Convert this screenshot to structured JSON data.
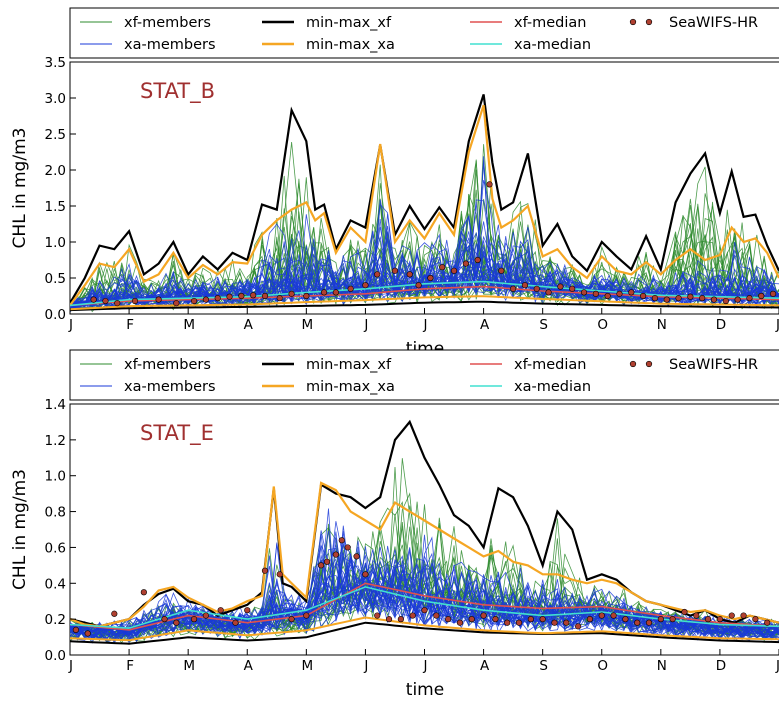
{
  "chart_data": [
    {
      "type": "line",
      "title": "STAT_B",
      "title_color": "#a03030",
      "xlabel": "time",
      "ylabel": "CHL in mg/m3",
      "ylim": [
        0,
        3.5
      ],
      "yticks": [
        "0.0",
        "0.5",
        "1.0",
        "1.5",
        "2.0",
        "2.5",
        "3.0",
        "3.5"
      ],
      "x_tick_labels": [
        "J",
        "F",
        "M",
        "A",
        "M",
        "J",
        "J",
        "A",
        "S",
        "O",
        "N",
        "D",
        "J"
      ],
      "xlim": [
        0,
        12
      ],
      "legend": {
        "placement": "top",
        "entries": [
          {
            "label": "xf-members",
            "color": "#2e8b2e",
            "style": "thin-line"
          },
          {
            "label": "min-max_xf",
            "color": "#000000",
            "style": "thick-line"
          },
          {
            "label": "xf-median",
            "color": "#e05050",
            "style": "line"
          },
          {
            "label": "SeaWIFS-HR",
            "color": "#b04030",
            "style": "dots"
          },
          {
            "label": "xa-members",
            "color": "#1a3ad8",
            "style": "thin-line"
          },
          {
            "label": "min-max_xa",
            "color": "#f5a623",
            "style": "thick-line"
          },
          {
            "label": "xa-median",
            "color": "#40e0d0",
            "style": "line"
          }
        ]
      },
      "series": [
        {
          "name": "min-max_xf",
          "role": "max",
          "x": [
            0,
            0.25,
            0.5,
            0.75,
            1.0,
            1.25,
            1.5,
            1.75,
            2.0,
            2.25,
            2.5,
            2.75,
            3.0,
            3.25,
            3.5,
            3.75,
            4.0,
            4.15,
            4.3,
            4.5,
            4.75,
            5.0,
            5.25,
            5.5,
            5.75,
            6.0,
            6.25,
            6.5,
            6.75,
            7.0,
            7.15,
            7.3,
            7.5,
            7.75,
            8.0,
            8.25,
            8.5,
            8.75,
            9.0,
            9.25,
            9.5,
            9.75,
            10.0,
            10.25,
            10.5,
            10.75,
            11.0,
            11.2,
            11.4,
            11.6,
            11.8,
            12.0
          ],
          "y": [
            0.15,
            0.5,
            0.95,
            0.9,
            1.15,
            0.55,
            0.7,
            1.0,
            0.55,
            0.8,
            0.62,
            0.85,
            0.75,
            1.52,
            1.45,
            2.83,
            2.4,
            1.45,
            1.52,
            0.9,
            1.3,
            1.2,
            2.35,
            1.1,
            1.5,
            1.18,
            1.48,
            1.2,
            2.4,
            3.05,
            2.1,
            1.45,
            1.55,
            2.23,
            0.95,
            1.25,
            0.8,
            0.6,
            1.0,
            0.8,
            0.62,
            1.08,
            0.62,
            1.55,
            1.95,
            2.23,
            1.4,
            1.98,
            1.35,
            1.38,
            0.95,
            0.6
          ]
        },
        {
          "name": "min-max_xa",
          "role": "max",
          "x": [
            0,
            0.25,
            0.5,
            0.75,
            1.0,
            1.25,
            1.5,
            1.75,
            2.0,
            2.25,
            2.5,
            2.75,
            3.0,
            3.25,
            3.5,
            3.75,
            4.0,
            4.15,
            4.3,
            4.5,
            4.75,
            5.0,
            5.25,
            5.5,
            5.75,
            6.0,
            6.25,
            6.5,
            6.75,
            7.0,
            7.15,
            7.3,
            7.5,
            7.75,
            8.0,
            8.25,
            8.5,
            8.75,
            9.0,
            9.25,
            9.5,
            9.75,
            10.0,
            10.25,
            10.5,
            10.75,
            11.0,
            11.2,
            11.4,
            11.6,
            11.8,
            12.0
          ],
          "y": [
            0.12,
            0.4,
            0.7,
            0.65,
            0.9,
            0.45,
            0.55,
            0.85,
            0.5,
            0.68,
            0.55,
            0.72,
            0.7,
            1.1,
            1.3,
            1.45,
            1.55,
            1.3,
            1.4,
            0.85,
            1.2,
            1.0,
            2.36,
            1.0,
            1.3,
            1.05,
            1.4,
            1.1,
            2.25,
            2.9,
            1.6,
            1.2,
            1.3,
            1.5,
            0.8,
            0.9,
            0.65,
            0.5,
            0.8,
            0.6,
            0.55,
            0.72,
            0.55,
            0.75,
            0.9,
            0.75,
            0.82,
            1.2,
            1.0,
            1.05,
            0.85,
            0.5
          ]
        },
        {
          "name": "xf-median",
          "x": [
            0,
            1,
            2,
            3,
            4,
            5,
            6,
            7,
            8,
            9,
            10,
            11,
            12
          ],
          "y": [
            0.12,
            0.18,
            0.2,
            0.22,
            0.25,
            0.28,
            0.35,
            0.38,
            0.32,
            0.28,
            0.24,
            0.22,
            0.2
          ]
        },
        {
          "name": "xa-median",
          "x": [
            0,
            1,
            2,
            3,
            4,
            5,
            6,
            7,
            8,
            9,
            10,
            11,
            12
          ],
          "y": [
            0.12,
            0.2,
            0.22,
            0.24,
            0.3,
            0.35,
            0.42,
            0.45,
            0.38,
            0.32,
            0.26,
            0.24,
            0.22
          ]
        },
        {
          "name": "SeaWIFS-HR",
          "type": "scatter",
          "x": [
            0.4,
            0.6,
            0.8,
            1.1,
            1.5,
            1.8,
            2.1,
            2.3,
            2.5,
            2.7,
            2.9,
            3.1,
            3.3,
            3.55,
            3.75,
            4.0,
            4.3,
            4.5,
            4.75,
            5.0,
            5.2,
            5.5,
            5.75,
            5.9,
            6.1,
            6.3,
            6.5,
            6.7,
            6.9,
            7.1,
            7.3,
            7.5,
            7.7,
            7.9,
            8.1,
            8.3,
            8.5,
            8.7,
            8.9,
            9.1,
            9.3,
            9.5,
            9.7,
            9.9,
            10.1,
            10.3,
            10.5,
            10.7,
            10.9,
            11.1,
            11.3,
            11.5,
            11.7,
            11.9
          ],
          "y": [
            0.2,
            0.18,
            0.15,
            0.18,
            0.2,
            0.15,
            0.18,
            0.2,
            0.22,
            0.24,
            0.25,
            0.26,
            0.25,
            0.22,
            0.28,
            0.25,
            0.3,
            0.3,
            0.35,
            0.4,
            0.55,
            0.6,
            0.55,
            0.4,
            0.5,
            0.65,
            0.6,
            0.7,
            0.75,
            1.8,
            0.6,
            0.35,
            0.4,
            0.35,
            0.3,
            0.38,
            0.35,
            0.3,
            0.28,
            0.25,
            0.28,
            0.3,
            0.25,
            0.22,
            0.2,
            0.22,
            0.24,
            0.22,
            0.2,
            0.18,
            0.2,
            0.22,
            0.25,
            0.28
          ]
        }
      ]
    },
    {
      "type": "line",
      "title": "STAT_E",
      "title_color": "#a03030",
      "xlabel": "time",
      "ylabel": "CHL in mg/m3",
      "ylim": [
        0,
        1.4
      ],
      "yticks": [
        "0.0",
        "0.2",
        "0.4",
        "0.6",
        "0.8",
        "1.0",
        "1.2",
        "1.4"
      ],
      "x_tick_labels": [
        "J",
        "F",
        "M",
        "A",
        "M",
        "J",
        "J",
        "A",
        "S",
        "O",
        "N",
        "D",
        "J"
      ],
      "xlim": [
        0,
        12
      ],
      "legend": {
        "placement": "top",
        "entries": [
          {
            "label": "xf-members",
            "color": "#2e8b2e",
            "style": "thin-line"
          },
          {
            "label": "min-max_xf",
            "color": "#000000",
            "style": "thick-line"
          },
          {
            "label": "xf-median",
            "color": "#e05050",
            "style": "line"
          },
          {
            "label": "SeaWIFS-HR",
            "color": "#b04030",
            "style": "dots"
          },
          {
            "label": "xa-members",
            "color": "#1a3ad8",
            "style": "thin-line"
          },
          {
            "label": "min-max_xa",
            "color": "#f5a623",
            "style": "thick-line"
          },
          {
            "label": "xa-median",
            "color": "#40e0d0",
            "style": "line"
          }
        ]
      },
      "series": [
        {
          "name": "min-max_xf",
          "role": "max",
          "x": [
            0,
            0.25,
            0.5,
            0.75,
            1.0,
            1.25,
            1.5,
            1.75,
            2.0,
            2.25,
            2.5,
            2.75,
            3.0,
            3.25,
            3.45,
            3.6,
            3.75,
            4.0,
            4.25,
            4.5,
            4.75,
            5.0,
            5.25,
            5.5,
            5.75,
            6.0,
            6.25,
            6.5,
            6.75,
            7.0,
            7.25,
            7.5,
            7.75,
            8.0,
            8.25,
            8.5,
            8.75,
            9.0,
            9.25,
            9.5,
            9.75,
            10.0,
            10.25,
            10.5,
            10.75,
            11.0,
            11.25,
            11.5,
            11.75,
            12.0
          ],
          "y": [
            0.2,
            0.18,
            0.16,
            0.18,
            0.2,
            0.28,
            0.34,
            0.37,
            0.3,
            0.28,
            0.22,
            0.25,
            0.28,
            0.35,
            0.93,
            0.4,
            0.38,
            0.3,
            0.95,
            0.9,
            0.88,
            0.82,
            0.88,
            1.2,
            1.3,
            1.1,
            0.95,
            0.78,
            0.72,
            0.6,
            0.93,
            0.88,
            0.72,
            0.5,
            0.8,
            0.7,
            0.42,
            0.45,
            0.42,
            0.35,
            0.3,
            0.28,
            0.25,
            0.22,
            0.25,
            0.2,
            0.18,
            0.22,
            0.2,
            0.18
          ]
        },
        {
          "name": "min-max_xa",
          "role": "max",
          "x": [
            0,
            0.25,
            0.5,
            0.75,
            1.0,
            1.25,
            1.5,
            1.75,
            2.0,
            2.25,
            2.5,
            2.75,
            3.0,
            3.25,
            3.45,
            3.6,
            3.75,
            4.0,
            4.25,
            4.5,
            4.75,
            5.0,
            5.25,
            5.5,
            5.75,
            6.0,
            6.25,
            6.5,
            6.75,
            7.0,
            7.25,
            7.5,
            7.75,
            8.0,
            8.25,
            8.5,
            8.75,
            9.0,
            9.25,
            9.5,
            9.75,
            10.0,
            10.25,
            10.5,
            10.75,
            11.0,
            11.25,
            11.5,
            11.75,
            12.0
          ],
          "y": [
            0.2,
            0.17,
            0.16,
            0.18,
            0.2,
            0.27,
            0.36,
            0.38,
            0.32,
            0.28,
            0.24,
            0.26,
            0.3,
            0.33,
            0.94,
            0.45,
            0.4,
            0.32,
            0.96,
            0.92,
            0.8,
            0.75,
            0.7,
            0.85,
            0.8,
            0.75,
            0.7,
            0.65,
            0.6,
            0.55,
            0.58,
            0.52,
            0.5,
            0.45,
            0.45,
            0.42,
            0.4,
            0.42,
            0.4,
            0.35,
            0.3,
            0.28,
            0.26,
            0.24,
            0.25,
            0.22,
            0.2,
            0.22,
            0.2,
            0.18
          ]
        },
        {
          "name": "xf-median",
          "x": [
            0,
            1,
            2,
            3,
            4,
            5,
            6,
            7,
            8,
            9,
            10,
            11,
            12
          ],
          "y": [
            0.17,
            0.14,
            0.22,
            0.18,
            0.22,
            0.4,
            0.33,
            0.28,
            0.26,
            0.27,
            0.22,
            0.18,
            0.16
          ]
        },
        {
          "name": "xa-median",
          "x": [
            0,
            1,
            2,
            3,
            4,
            5,
            6,
            7,
            8,
            9,
            10,
            11,
            12
          ],
          "y": [
            0.17,
            0.15,
            0.25,
            0.2,
            0.25,
            0.38,
            0.3,
            0.25,
            0.22,
            0.24,
            0.2,
            0.17,
            0.16
          ]
        },
        {
          "name": "SeaWIFS-HR",
          "type": "scatter",
          "x": [
            0.1,
            0.3,
            0.75,
            1.25,
            1.6,
            1.8,
            2.1,
            2.3,
            2.55,
            2.8,
            3.0,
            3.3,
            3.55,
            3.75,
            4.0,
            4.25,
            4.35,
            4.5,
            4.6,
            4.7,
            4.85,
            5.0,
            5.2,
            5.4,
            5.6,
            5.8,
            6.0,
            6.2,
            6.4,
            6.6,
            6.8,
            7.0,
            7.2,
            7.4,
            7.6,
            7.8,
            8.0,
            8.2,
            8.4,
            8.6,
            8.8,
            9.0,
            9.2,
            9.4,
            9.6,
            9.8,
            10.0,
            10.2,
            10.4,
            10.6,
            10.8,
            11.0,
            11.2,
            11.4,
            11.6,
            11.8
          ],
          "y": [
            0.14,
            0.12,
            0.23,
            0.35,
            0.2,
            0.18,
            0.2,
            0.22,
            0.25,
            0.18,
            0.25,
            0.47,
            0.45,
            0.2,
            0.22,
            0.5,
            0.52,
            0.56,
            0.64,
            0.6,
            0.55,
            0.45,
            0.22,
            0.2,
            0.2,
            0.22,
            0.25,
            0.22,
            0.2,
            0.18,
            0.2,
            0.22,
            0.2,
            0.18,
            0.18,
            0.2,
            0.2,
            0.18,
            0.18,
            0.16,
            0.2,
            0.22,
            0.22,
            0.2,
            0.18,
            0.18,
            0.2,
            0.2,
            0.24,
            0.22,
            0.2,
            0.2,
            0.22,
            0.22,
            0.2,
            0.18
          ]
        }
      ]
    }
  ]
}
